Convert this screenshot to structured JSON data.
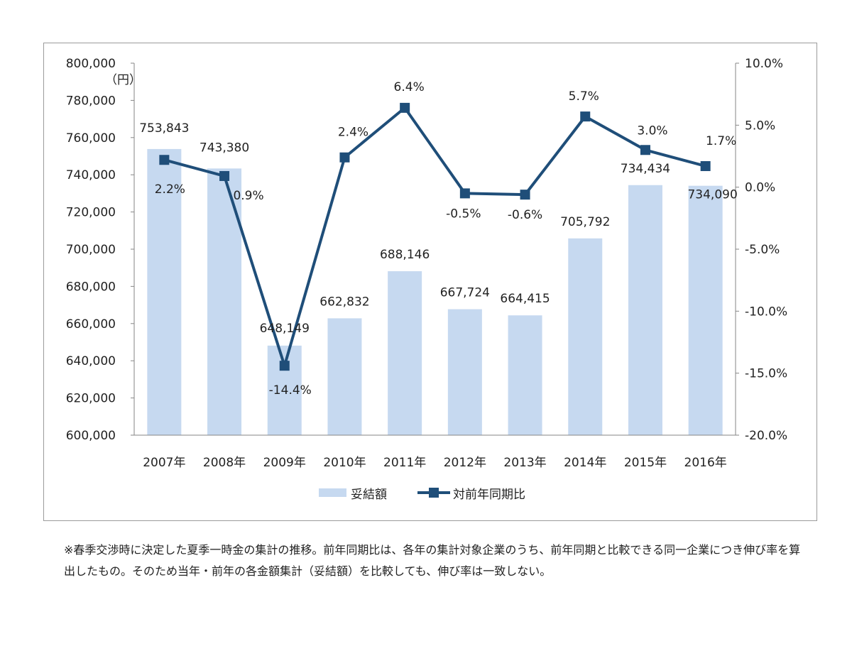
{
  "chart_data": {
    "type": "bar+line",
    "categories": [
      "2007年",
      "2008年",
      "2009年",
      "2010年",
      "2011年",
      "2012年",
      "2013年",
      "2014年",
      "2015年",
      "2016年"
    ],
    "bar_series": {
      "name": "妥結額",
      "values": [
        753843,
        743380,
        648149,
        662832,
        688146,
        667724,
        664415,
        705792,
        734434,
        734090
      ],
      "labels": [
        "753,843",
        "743,380",
        "648,149",
        "662,832",
        "688,146",
        "667,724",
        "664,415",
        "705,792",
        "734,434",
        "734,090"
      ],
      "color": "#c6d9f0"
    },
    "line_series": {
      "name": "対前年同期比",
      "values": [
        2.2,
        0.9,
        -14.4,
        2.4,
        6.4,
        -0.5,
        -0.6,
        5.7,
        3.0,
        1.7
      ],
      "labels": [
        "2.2%",
        "0.9%",
        "-14.4%",
        "2.4%",
        "6.4%",
        "-0.5%",
        "-0.6%",
        "5.7%",
        "3.0%",
        "1.7%"
      ],
      "color": "#1f4e79"
    },
    "y_left": {
      "min": 600000,
      "max": 800000,
      "ticks": [
        "600,000",
        "620,000",
        "640,000",
        "660,000",
        "680,000",
        "700,000",
        "720,000",
        "740,000",
        "760,000",
        "780,000",
        "800,000"
      ],
      "unit": "（円）"
    },
    "y_right": {
      "min": -20,
      "max": 10,
      "ticks": [
        "-20.0%",
        "-15.0%",
        "-10.0%",
        "-5.0%",
        "0.0%",
        "5.0%",
        "10.0%"
      ]
    },
    "legend": {
      "position": "bottom"
    },
    "grid": false
  },
  "footnote": "※春季交渉時に決定した夏季一時金の集計の推移。前年同期比は、各年の集計対象企業のうち、前年同期と比較できる同一企業につき伸び率を算出したもの。そのため当年・前年の各金額集計（妥結額）を比較しても、伸び率は一致しない。"
}
